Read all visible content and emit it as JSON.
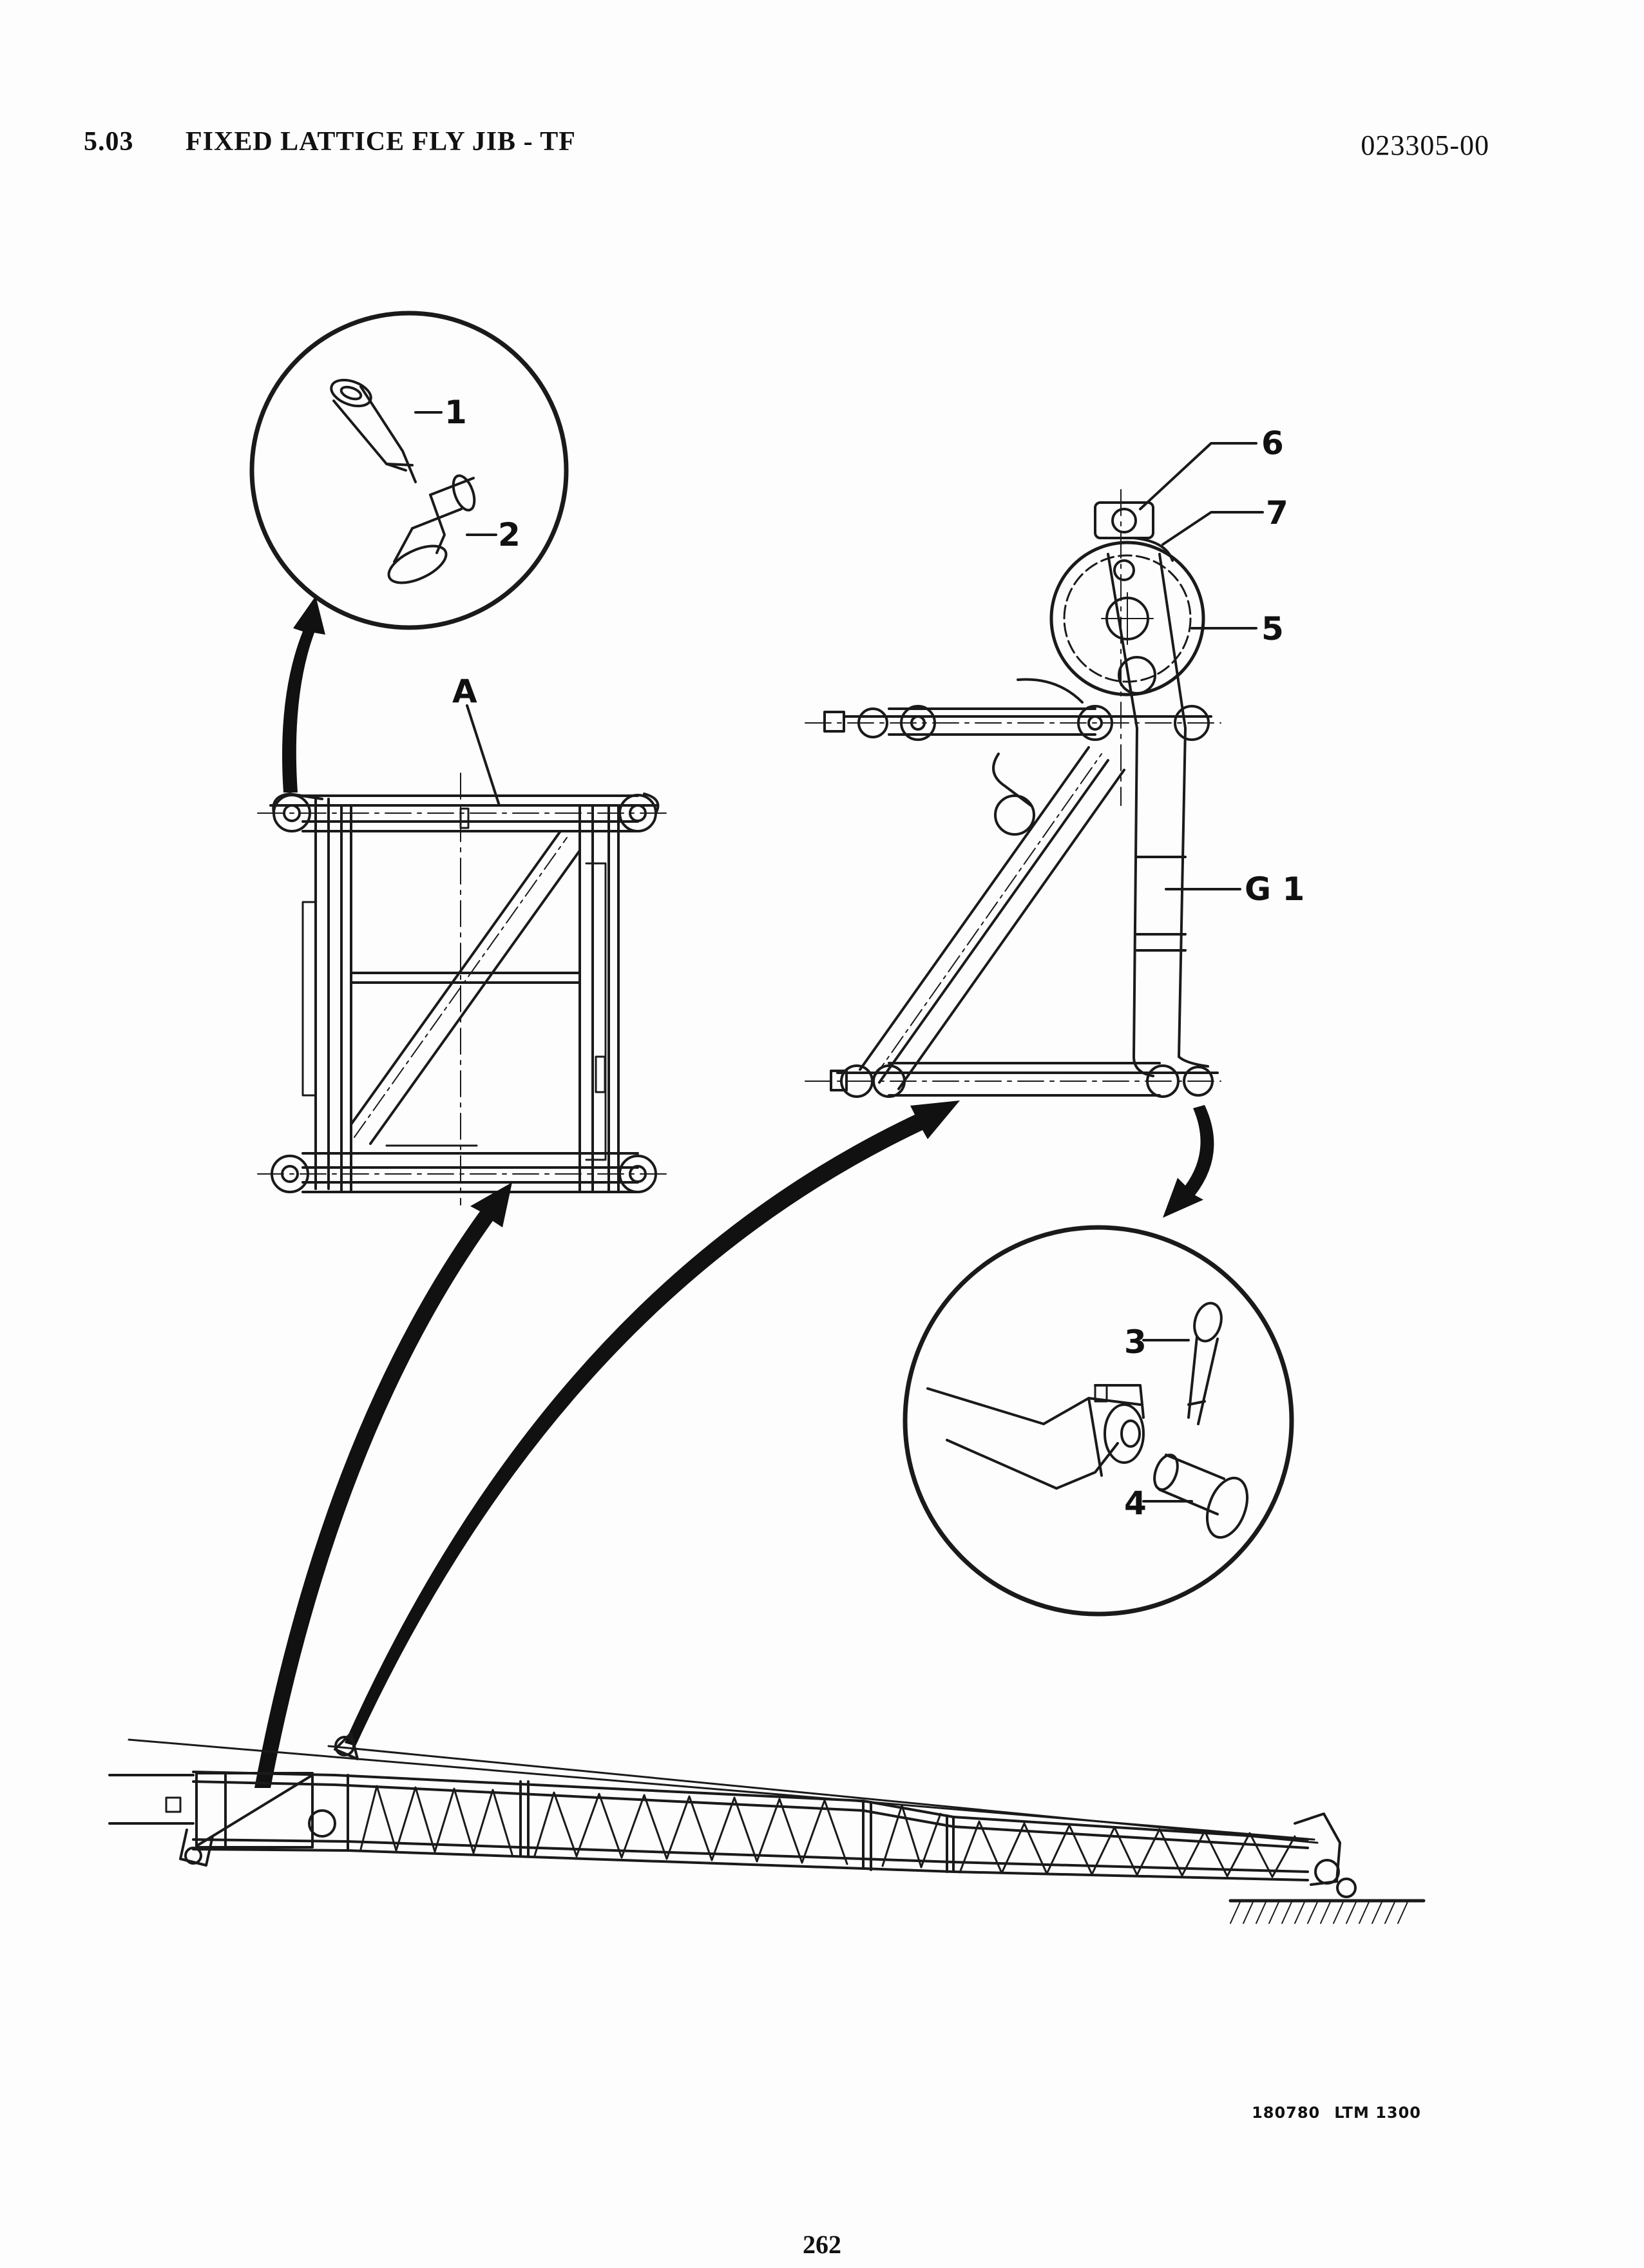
{
  "header": {
    "section_number": "5.03",
    "section_title": "FIXED LATTICE FLY JIB - TF",
    "document_number": "023305-00"
  },
  "figure": {
    "labels": {
      "part_1": "1",
      "part_2": "2",
      "part_3": "3",
      "part_4": "4",
      "part_5": "5",
      "part_6": "6",
      "part_7": "7",
      "frame_a": "A",
      "g1": "G 1"
    },
    "drawing_reference": "180780",
    "model": "LTM 1300"
  },
  "footer": {
    "page_number": "262"
  }
}
